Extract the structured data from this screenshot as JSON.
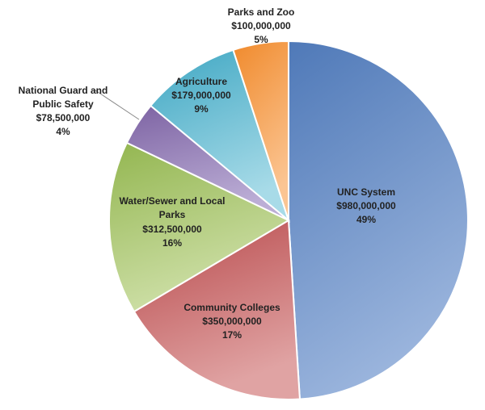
{
  "chart_data": {
    "type": "pie",
    "title": "",
    "slices": [
      {
        "name": "UNC System",
        "value_label": "$980,000,000",
        "pct_label": "49%",
        "value": 980000000,
        "colors": [
          "#4f79b8",
          "#9bb5dd"
        ]
      },
      {
        "name": "Community Colleges",
        "value_label": "$350,000,000",
        "pct_label": "17%",
        "value": 350000000,
        "colors": [
          "#b8494b",
          "#e0a3a3"
        ]
      },
      {
        "name_lines": [
          "Water/Sewer and Local",
          "Parks"
        ],
        "value_label": "$312,500,000",
        "pct_label": "16%",
        "value": 312500000,
        "colors": [
          "#93b650",
          "#cfe0a9"
        ]
      },
      {
        "name_lines": [
          "National Guard and",
          "Public Safety"
        ],
        "value_label": "$78,500,000",
        "pct_label": "4%",
        "value": 78500000,
        "colors": [
          "#7d63a3",
          "#bcaed6"
        ]
      },
      {
        "name": "Agriculture",
        "value_label": "$179,000,000",
        "pct_label": "9%",
        "value": 179000000,
        "colors": [
          "#3fa7c3",
          "#a8dbe8"
        ]
      },
      {
        "name": "Parks and Zoo",
        "value_label": "$100,000,000",
        "pct_label": "5%",
        "value": 100000000,
        "colors": [
          "#f08a2c",
          "#fbc593"
        ]
      }
    ]
  }
}
